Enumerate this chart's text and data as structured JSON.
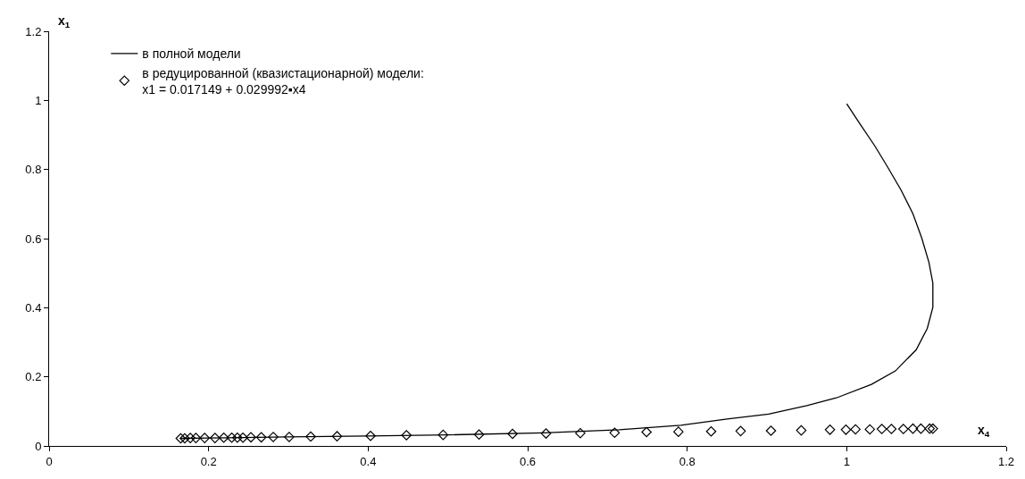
{
  "chart_data": {
    "type": "line",
    "xlabel": "x$_{4}$",
    "ylabel": "x$_{1}$",
    "xlim": [
      0,
      1.2
    ],
    "xticks": [
      0,
      0.2,
      0.4,
      0.6,
      0.8,
      1,
      1.2
    ],
    "ylim": [
      0,
      1.2
    ],
    "yticks": [
      0,
      0.2,
      0.4,
      0.6,
      0.8,
      1,
      1.2
    ],
    "legend": "top left",
    "series": [
      {
        "name": "в полной модели",
        "color": "#000000",
        "marker": "none",
        "line_style": "solid",
        "x": [
          1.0,
          1.016,
          1.035,
          1.05,
          1.068,
          1.083,
          1.094,
          1.103,
          1.108,
          1.108,
          1.101,
          1.087,
          1.061,
          1.031,
          0.987,
          0.95,
          0.902,
          0.85,
          0.792,
          0.715,
          0.62,
          0.5,
          0.4,
          0.3,
          0.2,
          0.165
        ],
        "values": [
          0.99,
          0.934,
          0.869,
          0.812,
          0.741,
          0.672,
          0.602,
          0.532,
          0.471,
          0.401,
          0.34,
          0.278,
          0.217,
          0.178,
          0.139,
          0.117,
          0.092,
          0.078,
          0.06,
          0.047,
          0.038,
          0.032,
          0.029,
          0.026,
          0.023,
          0.022
        ]
      },
      {
        "name": "в редуцированной (квазистационарной) модели:\nx1 = 0.017149 + 0.029992▪x4",
        "type": "scatter",
        "color": "#000000",
        "marker": "diamond",
        "x": [
          0.165,
          0.17,
          0.177,
          0.184,
          0.195,
          0.208,
          0.219,
          0.229,
          0.236,
          0.243,
          0.253,
          0.266,
          0.281,
          0.301,
          0.328,
          0.361,
          0.403,
          0.448,
          0.494,
          0.539,
          0.581,
          0.623,
          0.666,
          0.709,
          0.749,
          0.789,
          0.83,
          0.867,
          0.905,
          0.943,
          0.979,
          0.999,
          1.011,
          1.029,
          1.044,
          1.056,
          1.071,
          1.083,
          1.093,
          1.104,
          1.108
        ],
        "values": [
          0.022,
          0.022,
          0.023,
          0.023,
          0.023,
          0.023,
          0.024,
          0.024,
          0.024,
          0.024,
          0.025,
          0.025,
          0.026,
          0.026,
          0.027,
          0.028,
          0.029,
          0.031,
          0.032,
          0.033,
          0.035,
          0.036,
          0.037,
          0.038,
          0.04,
          0.041,
          0.042,
          0.043,
          0.044,
          0.045,
          0.047,
          0.047,
          0.048,
          0.048,
          0.049,
          0.049,
          0.049,
          0.05,
          0.05,
          0.05,
          0.05
        ]
      }
    ]
  }
}
